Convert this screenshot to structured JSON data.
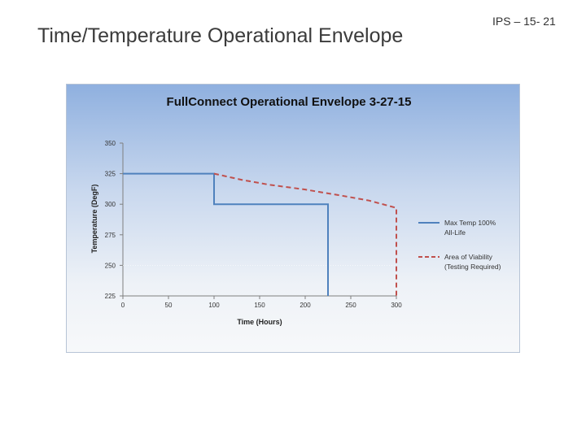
{
  "slide": {
    "title": "Time/Temperature Operational Envelope",
    "identifier": "IPS – 15- 21"
  },
  "chart_data": {
    "type": "line",
    "title": "FullConnect Operational Envelope 3-27-15",
    "xlabel": "Time (Hours)",
    "ylabel": "Temperature (DegF)",
    "xlim": [
      0,
      300
    ],
    "ylim": [
      225,
      350
    ],
    "x_ticks": [
      0,
      50,
      100,
      150,
      200,
      250,
      300
    ],
    "y_ticks": [
      225,
      250,
      275,
      300,
      325,
      350
    ],
    "x_tick_labels": [
      "0",
      "50",
      "100",
      "150",
      "200",
      "250",
      "300"
    ],
    "y_tick_labels": [
      "225",
      "250",
      "275",
      "300",
      "325",
      "350"
    ],
    "grid": false,
    "legend_position": "right",
    "series": [
      {
        "name": "Max Temp 100% All-Life",
        "name_lines": [
          "Max Temp 100%",
          "All-Life"
        ],
        "color": "#4f81bd",
        "style": "solid",
        "x": [
          0,
          100,
          100,
          225,
          225
        ],
        "y": [
          325,
          325,
          300,
          300,
          225
        ]
      },
      {
        "name": "Area of Viability (Testing Required)",
        "name_lines": [
          "Area of Viability",
          "(Testing Required)"
        ],
        "color": "#c0504d",
        "style": "dashed",
        "x": [
          100,
          130,
          160,
          200,
          240,
          270,
          300,
          300
        ],
        "y": [
          325,
          320,
          316,
          312,
          307,
          303,
          297,
          225
        ]
      }
    ]
  }
}
